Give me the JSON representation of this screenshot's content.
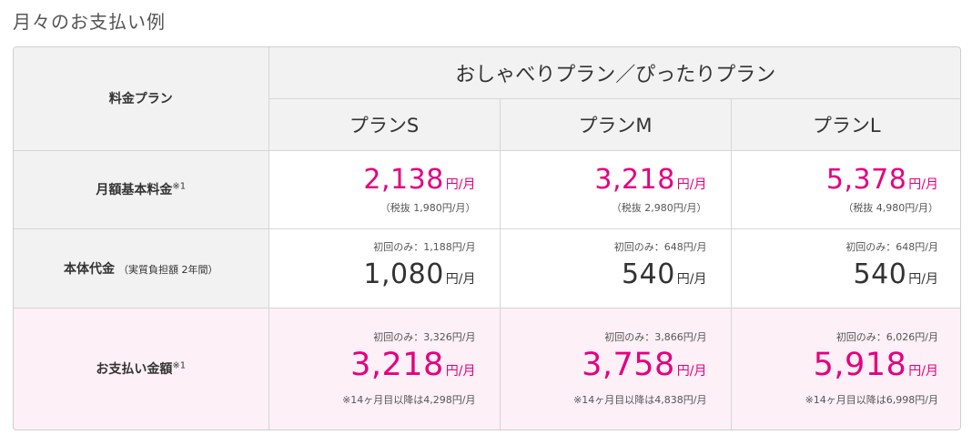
{
  "section_title": "月々のお支払い例",
  "table": {
    "corner_label": "料金プラン",
    "group_header": "おしゃべりプラン／ぴったりプラン",
    "plans": [
      "プランS",
      "プランM",
      "プランL"
    ],
    "rows": {
      "monthly_base": {
        "label": "月額基本料金",
        "footnote": "※1",
        "cells": [
          {
            "price": "2,138",
            "unit": "円/月",
            "note": "（税抜 1,980円/月）"
          },
          {
            "price": "3,218",
            "unit": "円/月",
            "note": "（税抜 2,980円/月）"
          },
          {
            "price": "5,378",
            "unit": "円/月",
            "note": "（税抜 4,980円/月）"
          }
        ]
      },
      "device_cost": {
        "label": "本体代金",
        "sublabel": "（実質負担額 2年間）",
        "cells": [
          {
            "first_note": "初回のみ：1,188円/月",
            "price": "1,080",
            "unit": "円/月"
          },
          {
            "first_note": "初回のみ：648円/月",
            "price": "540",
            "unit": "円/月"
          },
          {
            "first_note": "初回のみ：648円/月",
            "price": "540",
            "unit": "円/月"
          }
        ]
      },
      "payment": {
        "label": "お支払い金額",
        "footnote": "※1",
        "cells": [
          {
            "first_note": "初回のみ：3,326円/月",
            "price": "3,218",
            "unit": "円/月",
            "after_note": "※14ヶ月目以降は4,298円/月"
          },
          {
            "first_note": "初回のみ：3,866円/月",
            "price": "3,758",
            "unit": "円/月",
            "after_note": "※14ヶ月目以降は4,838円/月"
          },
          {
            "first_note": "初回のみ：6,026円/月",
            "price": "5,918",
            "unit": "円/月",
            "after_note": "※14ヶ月目以降は6,998円/月"
          }
        ]
      }
    }
  },
  "colors": {
    "accent": "#e4007f",
    "header_bg": "#f2f2f2",
    "highlight_row_bg": "#fdf0f6",
    "border": "#d6d6d6"
  }
}
